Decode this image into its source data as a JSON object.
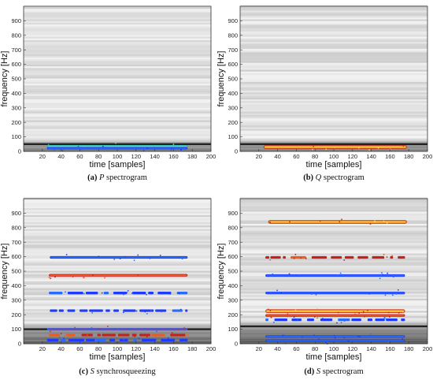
{
  "chart_data": [
    {
      "type": "heatmap",
      "panel": "a",
      "caption": {
        "letter": "(a)",
        "symbol": "P",
        "rest": " spectrogram"
      },
      "xlabel": "time [samples]",
      "ylabel": "frequency [Hz]",
      "xlim": [
        0,
        200
      ],
      "ylim": [
        0,
        1000
      ],
      "xticks": [
        20,
        40,
        60,
        80,
        100,
        120,
        140,
        160,
        180,
        200
      ],
      "yticks": [
        0,
        100,
        200,
        300,
        400,
        500,
        600,
        700,
        800,
        900
      ],
      "colormap": "gray-to-jet",
      "dark_band_hz": 50,
      "tracks": [
        {
          "freq": 35,
          "t_start": 25,
          "t_end": 175,
          "style": "cyan-green"
        },
        {
          "freq": 22,
          "t_start": 25,
          "t_end": 175,
          "style": "blue"
        }
      ]
    },
    {
      "type": "heatmap",
      "panel": "b",
      "caption": {
        "letter": "(b)",
        "symbol": "Q",
        "rest": " spectrogram"
      },
      "xlabel": "time [samples]",
      "ylabel": "frequency [Hz]",
      "xlim": [
        0,
        200
      ],
      "ylim": [
        0,
        1000
      ],
      "xticks": [
        20,
        40,
        60,
        80,
        100,
        120,
        140,
        160,
        180,
        200
      ],
      "yticks": [
        0,
        100,
        200,
        300,
        400,
        500,
        600,
        700,
        800,
        900
      ],
      "colormap": "gray-to-jet",
      "dark_band_hz": 50,
      "tracks": [
        {
          "freq": 30,
          "t_start": 25,
          "t_end": 178,
          "style": "hot"
        }
      ]
    },
    {
      "type": "heatmap",
      "panel": "c",
      "caption": {
        "letter": "(c)",
        "symbol": "S",
        "rest": " synchrosqueezing"
      },
      "xlabel": "time [samples]",
      "ylabel": "frequency [Hz]",
      "xlim": [
        0,
        200
      ],
      "ylim": [
        0,
        1000
      ],
      "xticks": [
        20,
        40,
        60,
        80,
        100,
        120,
        140,
        160,
        180,
        200
      ],
      "yticks": [
        0,
        100,
        200,
        300,
        400,
        500,
        600,
        700,
        800,
        900
      ],
      "colormap": "gray-to-jet",
      "dark_band_hz": 100,
      "tracks": [
        {
          "freq": 595,
          "t_start": 28,
          "t_end": 175,
          "style": "blue"
        },
        {
          "freq": 472,
          "t_start": 27,
          "t_end": 175,
          "style": "red"
        },
        {
          "freq": 350,
          "t_start": 27,
          "t_end": 175,
          "style": "blue-broken"
        },
        {
          "freq": 228,
          "t_start": 28,
          "t_end": 175,
          "style": "blue-broken"
        },
        {
          "freq": 100,
          "t_start": 25,
          "t_end": 175,
          "style": "mixed"
        },
        {
          "freq": 60,
          "t_start": 27,
          "t_end": 175,
          "style": "red-broken"
        },
        {
          "freq": 25,
          "t_start": 25,
          "t_end": 175,
          "style": "blue-broken"
        }
      ]
    },
    {
      "type": "heatmap",
      "panel": "d",
      "caption": {
        "letter": "(d)",
        "symbol": "S",
        "rest": " spectrogram"
      },
      "xlabel": "time [samples]",
      "ylabel": "frequency [Hz]",
      "xlim": [
        0,
        200
      ],
      "ylim": [
        0,
        1000
      ],
      "xticks": [
        20,
        40,
        60,
        80,
        100,
        120,
        140,
        160,
        180,
        200
      ],
      "yticks": [
        0,
        100,
        200,
        300,
        400,
        500,
        600,
        700,
        800,
        900
      ],
      "colormap": "gray-to-jet",
      "dark_band_hz": 120,
      "tracks": [
        {
          "freq": 840,
          "t_start": 30,
          "t_end": 178,
          "style": "hot"
        },
        {
          "freq": 595,
          "t_start": 27,
          "t_end": 176,
          "style": "red-broken"
        },
        {
          "freq": 470,
          "t_start": 27,
          "t_end": 176,
          "style": "blue"
        },
        {
          "freq": 350,
          "t_start": 27,
          "t_end": 176,
          "style": "blue"
        },
        {
          "freq": 225,
          "t_start": 27,
          "t_end": 176,
          "style": "hot"
        },
        {
          "freq": 195,
          "t_start": 27,
          "t_end": 176,
          "style": "red"
        },
        {
          "freq": 165,
          "t_start": 27,
          "t_end": 176,
          "style": "blue-broken"
        },
        {
          "freq": 50,
          "t_start": 27,
          "t_end": 176,
          "style": "blue"
        },
        {
          "freq": 20,
          "t_start": 27,
          "t_end": 176,
          "style": "blue"
        }
      ]
    }
  ]
}
